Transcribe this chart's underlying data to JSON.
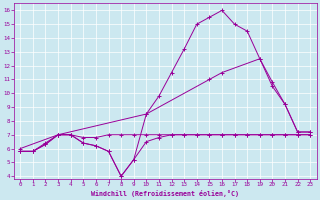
{
  "xlabel": "Windchill (Refroidissement éolien,°C)",
  "background_color": "#cce8f0",
  "line_color": "#990099",
  "xlim": [
    -0.5,
    23.5
  ],
  "ylim": [
    3.8,
    16.5
  ],
  "xticks": [
    0,
    1,
    2,
    3,
    4,
    5,
    6,
    7,
    8,
    9,
    10,
    11,
    12,
    13,
    14,
    15,
    16,
    17,
    18,
    19,
    20,
    21,
    22,
    23
  ],
  "yticks": [
    4,
    5,
    6,
    7,
    8,
    9,
    10,
    11,
    12,
    13,
    14,
    15,
    16
  ],
  "series": [
    {
      "x": [
        0,
        1,
        2,
        3,
        4,
        5,
        6,
        7,
        8,
        9,
        10,
        11,
        12,
        13,
        14,
        15,
        16,
        17,
        18,
        19,
        20,
        21,
        22,
        23
      ],
      "y": [
        5.8,
        5.8,
        6.4,
        7.0,
        7.0,
        6.8,
        6.8,
        7.0,
        7.0,
        7.0,
        7.0,
        7.0,
        7.0,
        7.0,
        7.0,
        7.0,
        7.0,
        7.0,
        7.0,
        7.0,
        7.0,
        7.0,
        7.0,
        7.0
      ]
    },
    {
      "x": [
        0,
        1,
        2,
        3,
        4,
        5,
        6,
        7,
        8,
        9,
        10,
        11,
        12,
        13,
        14,
        15,
        16,
        17,
        18,
        19,
        20,
        21,
        22,
        23
      ],
      "y": [
        5.8,
        5.8,
        6.3,
        7.0,
        7.0,
        6.4,
        6.2,
        5.8,
        4.0,
        5.2,
        6.5,
        6.8,
        7.0,
        7.0,
        7.0,
        7.0,
        7.0,
        7.0,
        7.0,
        7.0,
        7.0,
        7.0,
        7.0,
        7.0
      ]
    },
    {
      "x": [
        0,
        1,
        2,
        3,
        4,
        5,
        6,
        7,
        8,
        9,
        10,
        11,
        12,
        13,
        14,
        15,
        16,
        17,
        18,
        19,
        20,
        21,
        22,
        23
      ],
      "y": [
        5.8,
        5.8,
        6.3,
        7.0,
        7.0,
        6.4,
        6.2,
        5.8,
        4.0,
        5.2,
        8.5,
        9.8,
        11.5,
        13.2,
        15.0,
        15.5,
        16.0,
        15.0,
        14.5,
        12.5,
        10.8,
        9.2,
        7.2,
        7.2
      ]
    },
    {
      "x": [
        0,
        3,
        10,
        15,
        16,
        19,
        20,
        21,
        22,
        23
      ],
      "y": [
        6.0,
        7.0,
        8.5,
        11.0,
        11.5,
        12.5,
        10.5,
        9.2,
        7.2,
        7.2
      ]
    }
  ]
}
